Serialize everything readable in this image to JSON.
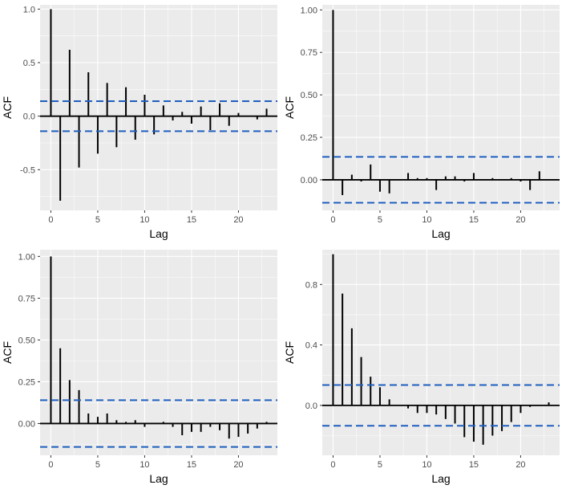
{
  "colors": {
    "panel_bg": "#ebebeb",
    "grid_major": "#ffffff",
    "bar": "#000000",
    "ci_line": "#1f5fbf",
    "tick_text": "#4d4d4d"
  },
  "chart_data": [
    {
      "type": "bar",
      "title": "",
      "xlabel": "Lag",
      "ylabel": "ACF",
      "xlim": [
        -1.15,
        24.15
      ],
      "ylim": [
        -0.88,
        1.04
      ],
      "xticks": [
        0,
        5,
        10,
        15,
        20
      ],
      "yticks": [
        -0.5,
        0.0,
        0.5,
        1.0
      ],
      "ytick_labels": [
        "-0.5",
        "0.0",
        "0.5",
        "1.0"
      ],
      "ci": 0.14,
      "lags": [
        0,
        1,
        2,
        3,
        4,
        5,
        6,
        7,
        8,
        9,
        10,
        11,
        12,
        13,
        14,
        15,
        16,
        17,
        18,
        19,
        20,
        21,
        22,
        23
      ],
      "values": [
        1.0,
        -0.79,
        0.62,
        -0.48,
        0.41,
        -0.35,
        0.31,
        -0.29,
        0.27,
        -0.22,
        0.2,
        -0.17,
        0.1,
        -0.04,
        0.04,
        -0.07,
        0.09,
        -0.13,
        0.12,
        -0.09,
        0.03,
        0.0,
        -0.03,
        0.07
      ]
    },
    {
      "type": "bar",
      "title": "",
      "xlabel": "Lag",
      "ylabel": "ACF",
      "xlim": [
        -1.15,
        24.15
      ],
      "ylim": [
        -0.18,
        1.03
      ],
      "xticks": [
        0,
        5,
        10,
        15,
        20
      ],
      "yticks": [
        0.0,
        0.25,
        0.5,
        0.75,
        1.0
      ],
      "ytick_labels": [
        "0.00",
        "0.25",
        "0.50",
        "0.75",
        "1.00"
      ],
      "ci": 0.135,
      "lags": [
        0,
        1,
        2,
        3,
        4,
        5,
        6,
        7,
        8,
        9,
        10,
        11,
        12,
        13,
        14,
        15,
        16,
        17,
        18,
        19,
        20,
        21,
        22
      ],
      "values": [
        1.0,
        -0.09,
        0.03,
        -0.01,
        0.09,
        -0.07,
        -0.08,
        0.0,
        0.04,
        0.01,
        0.01,
        -0.06,
        0.02,
        0.02,
        -0.01,
        0.04,
        0.0,
        0.01,
        0.0,
        0.01,
        -0.01,
        -0.06,
        0.05
      ]
    },
    {
      "type": "bar",
      "title": "",
      "xlabel": "Lag",
      "ylabel": "ACF",
      "xlim": [
        -1.15,
        24.15
      ],
      "ylim": [
        -0.19,
        1.04
      ],
      "xticks": [
        0,
        5,
        10,
        15,
        20
      ],
      "yticks": [
        0.0,
        0.25,
        0.5,
        0.75,
        1.0
      ],
      "ytick_labels": [
        "0.00",
        "0.25",
        "0.50",
        "0.75",
        "1.00"
      ],
      "ci": 0.14,
      "lags": [
        0,
        1,
        2,
        3,
        4,
        5,
        6,
        7,
        8,
        9,
        10,
        11,
        12,
        13,
        14,
        15,
        16,
        17,
        18,
        19,
        20,
        21,
        22,
        23
      ],
      "values": [
        1.0,
        0.45,
        0.26,
        0.2,
        0.06,
        0.04,
        0.06,
        0.02,
        0.01,
        0.02,
        -0.02,
        0.0,
        0.01,
        -0.02,
        -0.07,
        -0.05,
        -0.05,
        -0.02,
        -0.04,
        -0.09,
        -0.08,
        -0.06,
        -0.03,
        0.01
      ]
    },
    {
      "type": "bar",
      "title": "",
      "xlabel": "Lag",
      "ylabel": "ACF",
      "xlim": [
        -1.15,
        24.15
      ],
      "ylim": [
        -0.33,
        1.03
      ],
      "xticks": [
        0,
        5,
        10,
        15,
        20
      ],
      "yticks": [
        0.0,
        0.4,
        0.8
      ],
      "ytick_labels": [
        "0.0",
        "0.4",
        "0.8"
      ],
      "ci": 0.135,
      "lags": [
        0,
        1,
        2,
        3,
        4,
        5,
        6,
        7,
        8,
        9,
        10,
        11,
        12,
        13,
        14,
        15,
        16,
        17,
        18,
        19,
        20,
        21,
        22,
        23
      ],
      "values": [
        1.0,
        0.74,
        0.51,
        0.32,
        0.19,
        0.12,
        0.04,
        0.0,
        -0.02,
        -0.05,
        -0.05,
        -0.06,
        -0.09,
        -0.12,
        -0.21,
        -0.24,
        -0.26,
        -0.2,
        -0.17,
        -0.11,
        -0.05,
        -0.01,
        0.0,
        0.02
      ]
    }
  ]
}
